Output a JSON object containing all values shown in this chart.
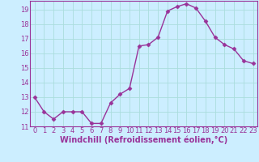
{
  "x": [
    0,
    1,
    2,
    3,
    4,
    5,
    6,
    7,
    8,
    9,
    10,
    11,
    12,
    13,
    14,
    15,
    16,
    17,
    18,
    19,
    20,
    21,
    22,
    23
  ],
  "y": [
    13.0,
    12.0,
    11.5,
    12.0,
    12.0,
    12.0,
    11.2,
    11.2,
    12.6,
    13.2,
    13.6,
    16.5,
    16.6,
    17.1,
    18.9,
    19.2,
    19.4,
    19.1,
    18.2,
    17.1,
    16.6,
    16.3,
    15.5,
    15.3
  ],
  "line_color": "#993399",
  "marker": "D",
  "marker_size": 2.5,
  "linewidth": 1.0,
  "xlabel": "Windchill (Refroidissement éolien,°C)",
  "xlabel_fontsize": 7.0,
  "xlim": [
    -0.5,
    23.5
  ],
  "ylim": [
    11.0,
    19.6
  ],
  "yticks": [
    11,
    12,
    13,
    14,
    15,
    16,
    17,
    18,
    19
  ],
  "xticks": [
    0,
    1,
    2,
    3,
    4,
    5,
    6,
    7,
    8,
    9,
    10,
    11,
    12,
    13,
    14,
    15,
    16,
    17,
    18,
    19,
    20,
    21,
    22,
    23
  ],
  "grid_color": "#aadddd",
  "bg_color": "#cceeff",
  "tick_fontsize": 6.0,
  "spine_color": "#993399"
}
